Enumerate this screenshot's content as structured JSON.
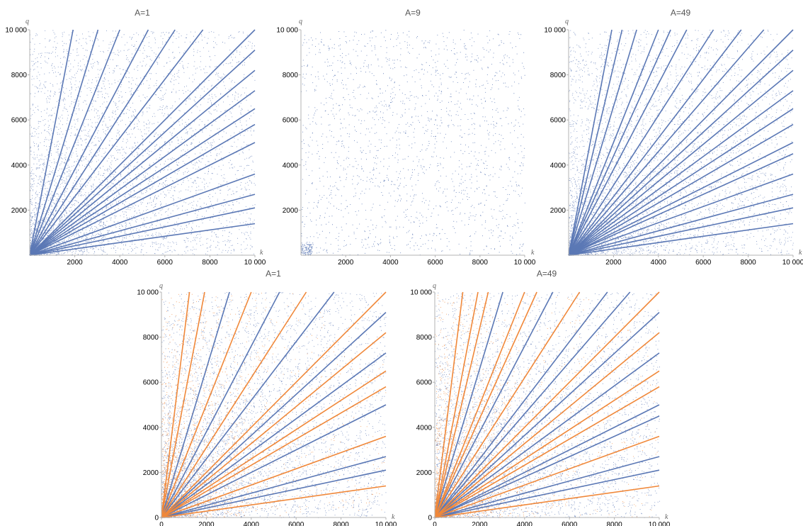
{
  "colors": {
    "blue": "#5b78b5",
    "orange": "#f0883a",
    "axis": "#b3b3b3"
  },
  "chart_data": [
    {
      "type": "scatter",
      "title": "A=1",
      "xlabel": "k",
      "ylabel": "q",
      "xlim": [
        0,
        10000
      ],
      "ylim": [
        0,
        10000
      ],
      "xticks": [
        "2000",
        "4000",
        "6000",
        "8000",
        "10 000"
      ],
      "yticks": [
        "2000",
        "4000",
        "6000",
        "8000",
        "10 000"
      ],
      "series": [
        {
          "color": "#5b78b5",
          "ray_slopes": [
            0.14,
            0.21,
            0.27,
            0.36,
            0.5,
            0.58,
            0.65,
            0.73,
            0.82,
            0.91,
            1.0,
            1.3,
            1.55,
            1.9,
            2.5,
            3.3,
            5.2
          ],
          "background": "dense scatter, concentrated near origin"
        }
      ]
    },
    {
      "type": "scatter",
      "title": "A=9",
      "xlabel": "k",
      "ylabel": "q",
      "xlim": [
        0,
        10000
      ],
      "ylim": [
        0,
        10000
      ],
      "xticks": [
        "2000",
        "4000",
        "6000",
        "8000",
        "10 000"
      ],
      "yticks": [
        "2000",
        "4000",
        "6000",
        "8000",
        "10 000"
      ],
      "series": [
        {
          "color": "#5b78b5",
          "ray_slopes": [],
          "background": "sparse uniform scatter, small cluster at origin"
        }
      ]
    },
    {
      "type": "scatter",
      "title": "A=49",
      "xlabel": "k",
      "ylabel": "q",
      "xlim": [
        0,
        10000
      ],
      "ylim": [
        0,
        10000
      ],
      "xticks": [
        "2000",
        "4000",
        "6000",
        "8000",
        "10 000"
      ],
      "yticks": [
        "2000",
        "4000",
        "6000",
        "8000",
        "10 000"
      ],
      "series": [
        {
          "color": "#5b78b5",
          "ray_slopes": [
            0.14,
            0.21,
            0.27,
            0.36,
            0.45,
            0.5,
            0.58,
            0.65,
            0.73,
            0.82,
            0.91,
            1.0,
            1.15,
            1.3,
            1.55,
            1.9,
            2.2,
            2.5,
            3.3,
            4.2,
            5.2
          ],
          "background": "dense scatter, concentrated near origin"
        }
      ]
    },
    {
      "type": "scatter",
      "title": "A=1",
      "xlabel": "k",
      "ylabel": "q",
      "xlim": [
        0,
        10000
      ],
      "ylim": [
        0,
        10000
      ],
      "xticks": [
        "0",
        "2000",
        "4000",
        "6000",
        "8000",
        "10 000"
      ],
      "yticks": [
        "0",
        "2000",
        "4000",
        "6000",
        "8000",
        "10 000"
      ],
      "series": [
        {
          "color": "#5b78b5",
          "ray_slopes": [
            0.21,
            0.27,
            0.5,
            0.73,
            0.91,
            1.3,
            1.9,
            3.3
          ],
          "background": "dense scatter"
        },
        {
          "color": "#f0883a",
          "ray_slopes": [
            0.14,
            0.36,
            0.58,
            0.65,
            0.82,
            1.0,
            1.55,
            2.5,
            5.2,
            8.0
          ],
          "background": "overlay scatter, concentrated near origin"
        }
      ]
    },
    {
      "type": "scatter",
      "title": "A=49",
      "xlabel": "k",
      "ylabel": "q",
      "xlim": [
        0,
        10000
      ],
      "ylim": [
        0,
        10000
      ],
      "xticks": [
        "0",
        "2000",
        "4000",
        "6000",
        "8000",
        "10 000"
      ],
      "yticks": [
        "0",
        "2000",
        "4000",
        "6000",
        "8000",
        "10 000"
      ],
      "series": [
        {
          "color": "#5b78b5",
          "ray_slopes": [
            0.21,
            0.27,
            0.45,
            0.5,
            0.73,
            0.91,
            1.15,
            1.3,
            1.9,
            3.3
          ],
          "background": "dense scatter"
        },
        {
          "color": "#f0883a",
          "ray_slopes": [
            0.14,
            0.36,
            0.58,
            0.65,
            0.82,
            1.0,
            1.55,
            2.2,
            2.5,
            4.2,
            5.2,
            8.0
          ],
          "background": "overlay scatter, concentrated near origin"
        }
      ]
    }
  ]
}
